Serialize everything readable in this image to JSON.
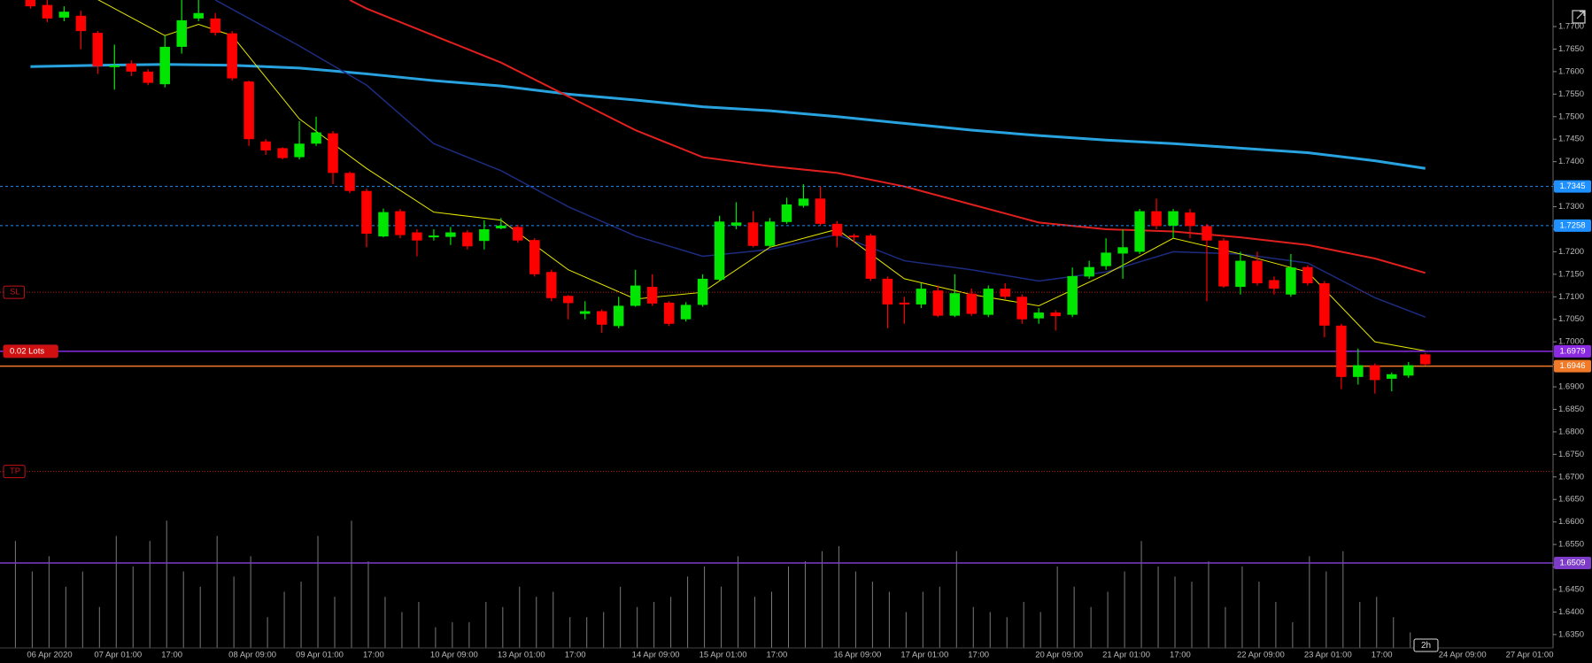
{
  "chart_data": {
    "type": "candlestick",
    "timeframe": "2h",
    "colors": {
      "up": "#00e600",
      "down": "#ff0000",
      "volume": "#7a7a7a"
    },
    "categories": [
      "06 Apr 2020",
      null,
      null,
      null,
      "07 Apr 01:00",
      null,
      null,
      null,
      "17:00",
      null,
      null,
      null,
      "08 Apr 09:00",
      null,
      null,
      null,
      "09 Apr 01:00",
      null,
      null,
      null,
      "17:00",
      null,
      null,
      null,
      "10 Apr 09:00",
      null,
      null,
      null,
      "13 Apr 01:00",
      null,
      null,
      null,
      "17:00",
      null,
      null,
      null,
      "14 Apr 09:00",
      null,
      null,
      null,
      "15 Apr 01:00",
      null,
      null,
      null,
      "17:00",
      null,
      null,
      null,
      "16 Apr 09:00",
      null,
      null,
      null,
      "17 Apr 01:00",
      null,
      null,
      null,
      "17:00",
      null,
      null,
      null,
      "20 Apr 09:00",
      null,
      null,
      null,
      "21 Apr 01:00",
      null,
      null,
      null,
      "17:00",
      null,
      null,
      null,
      "22 Apr 09:00",
      null,
      null,
      null,
      "23 Apr 01:00",
      null,
      null,
      null,
      "17:00",
      null,
      null,
      null,
      "24 Apr 09:00",
      null,
      null,
      null,
      "27 Apr 01:00",
      null,
      null
    ],
    "open": [
      1.7768,
      1.7748,
      1.772,
      1.7724,
      1.7686,
      1.761,
      1.7618,
      1.76,
      1.7572,
      1.7655,
      1.7718,
      1.7718,
      1.7685,
      1.7578,
      1.7445,
      1.743,
      1.741,
      1.744,
      1.7463,
      1.7375,
      1.7335,
      1.7234,
      1.729,
      1.7243,
      1.7232,
      1.7233,
      1.7243,
      1.7224,
      1.7252,
      1.7255,
      1.7226,
      1.7155,
      1.7102,
      1.7062,
      1.7068,
      1.7035,
      1.708,
      1.7122,
      1.7087,
      1.705,
      1.7082,
      1.7138,
      1.7258,
      1.7265,
      1.7213,
      1.7266,
      1.7302,
      1.7318,
      1.7262,
      1.7236,
      1.7236,
      1.714,
      1.7087,
      1.7083,
      1.7114,
      1.7058,
      1.7107,
      1.706,
      1.7118,
      1.71,
      1.7052,
      1.7065,
      1.706,
      1.7145,
      1.7168,
      1.7196,
      1.72,
      1.729,
      1.7258,
      1.7287,
      1.7257,
      1.7225,
      1.7122,
      1.718,
      1.7137,
      1.7105,
      1.7166,
      1.713,
      1.7036,
      1.6922,
      1.6948,
      1.6918,
      1.6925,
      1.6972,
      null,
      null,
      null,
      null,
      null,
      null,
      null
    ],
    "high": [
      1.778,
      1.776,
      1.7745,
      1.7735,
      1.769,
      1.766,
      1.7625,
      1.7605,
      1.768,
      1.776,
      1.776,
      1.773,
      1.769,
      1.758,
      1.745,
      1.7432,
      1.749,
      1.75,
      1.7468,
      1.7378,
      1.734,
      1.7296,
      1.7295,
      1.725,
      1.725,
      1.7255,
      1.7248,
      1.727,
      1.7275,
      1.726,
      1.723,
      1.716,
      1.7104,
      1.709,
      1.7072,
      1.71,
      1.716,
      1.715,
      1.709,
      1.7088,
      1.715,
      1.728,
      1.731,
      1.729,
      1.7275,
      1.732,
      1.735,
      1.7345,
      1.7268,
      1.724,
      1.724,
      1.7145,
      1.71,
      1.713,
      1.7125,
      1.715,
      1.7118,
      1.7125,
      1.713,
      1.7105,
      1.7075,
      1.707,
      1.7165,
      1.718,
      1.723,
      1.725,
      1.7295,
      1.7318,
      1.7295,
      1.7295,
      1.7262,
      1.723,
      1.72,
      1.72,
      1.7145,
      1.7195,
      1.717,
      1.7135,
      1.704,
      1.6985,
      1.6952,
      1.6932,
      1.6955,
      1.6975,
      null,
      null,
      null,
      null,
      null,
      null,
      null
    ],
    "low": [
      1.774,
      1.771,
      1.7712,
      1.765,
      1.7595,
      1.756,
      1.759,
      1.757,
      1.7565,
      1.764,
      1.7712,
      1.768,
      1.758,
      1.7435,
      1.7415,
      1.7405,
      1.7405,
      1.7435,
      1.735,
      1.733,
      1.721,
      1.7232,
      1.723,
      1.719,
      1.7225,
      1.7215,
      1.7205,
      1.7205,
      1.725,
      1.722,
      1.7145,
      1.709,
      1.705,
      1.705,
      1.702,
      1.703,
      1.7078,
      1.708,
      1.7035,
      1.7045,
      1.7078,
      1.7135,
      1.725,
      1.721,
      1.721,
      1.7262,
      1.7298,
      1.7258,
      1.721,
      1.722,
      1.7135,
      1.703,
      1.704,
      1.7075,
      1.7055,
      1.7055,
      1.7058,
      1.7055,
      1.7095,
      1.704,
      1.704,
      1.7025,
      1.7055,
      1.714,
      1.716,
      1.714,
      1.7195,
      1.725,
      1.723,
      1.723,
      1.709,
      1.712,
      1.7105,
      1.7125,
      1.7105,
      1.71,
      1.7125,
      1.701,
      1.6895,
      1.6905,
      1.6885,
      1.689,
      1.692,
      1.6948,
      null,
      null,
      null,
      null,
      null,
      null,
      null
    ],
    "close": [
      1.7745,
      1.7718,
      1.7733,
      1.769,
      1.7612,
      1.7614,
      1.76,
      1.7575,
      1.7655,
      1.7714,
      1.773,
      1.7686,
      1.7585,
      1.745,
      1.7425,
      1.7408,
      1.744,
      1.7465,
      1.7375,
      1.7335,
      1.724,
      1.7288,
      1.7237,
      1.7225,
      1.7236,
      1.7243,
      1.7212,
      1.725,
      1.7258,
      1.7225,
      1.715,
      1.7097,
      1.7086,
      1.7068,
      1.7038,
      1.708,
      1.7125,
      1.7085,
      1.704,
      1.7082,
      1.714,
      1.7267,
      1.7265,
      1.7213,
      1.7267,
      1.7305,
      1.7318,
      1.7262,
      1.7235,
      1.7232,
      1.714,
      1.7083,
      1.7083,
      1.7118,
      1.7058,
      1.7108,
      1.7062,
      1.7118,
      1.71,
      1.705,
      1.7065,
      1.7057,
      1.7146,
      1.7166,
      1.7198,
      1.721,
      1.729,
      1.7257,
      1.729,
      1.7257,
      1.7225,
      1.7123,
      1.718,
      1.713,
      1.7118,
      1.7165,
      1.713,
      1.7036,
      1.6922,
      1.6948,
      1.6915,
      1.6928,
      1.6948,
      1.695,
      null,
      null,
      null,
      null,
      null,
      null,
      null
    ],
    "volume": [
      105,
      75,
      90,
      60,
      75,
      40,
      110,
      80,
      105,
      125,
      75,
      60,
      110,
      70,
      90,
      30,
      55,
      65,
      110,
      50,
      125,
      85,
      50,
      35,
      45,
      20,
      25,
      25,
      45,
      40,
      60,
      50,
      55,
      30,
      30,
      35,
      60,
      40,
      45,
      50,
      70,
      80,
      60,
      90,
      50,
      55,
      80,
      85,
      95,
      100,
      75,
      65,
      55,
      35,
      55,
      60,
      95,
      40,
      35,
      30,
      45,
      35,
      80,
      60,
      40,
      55,
      75,
      105,
      80,
      70,
      65,
      85,
      40,
      80,
      65,
      45,
      25,
      90,
      75,
      95,
      45,
      50,
      30,
      15,
      null,
      null,
      null,
      null,
      null,
      null,
      null
    ],
    "overlays": [
      {
        "color": "#29a3e0",
        "width": 3,
        "x": [
          0,
          4,
          8,
          12,
          16,
          20,
          24,
          28,
          32,
          36,
          40,
          44,
          48,
          52,
          56,
          60,
          64,
          68,
          72,
          76,
          80,
          83
        ],
        "values": [
          1.7611,
          1.7614,
          1.7616,
          1.7614,
          1.7608,
          1.7595,
          1.758,
          1.7568,
          1.755,
          1.7537,
          1.7522,
          1.7513,
          1.75,
          1.7485,
          1.747,
          1.7458,
          1.7448,
          1.744,
          1.743,
          1.742,
          1.7402,
          1.7385
        ]
      },
      {
        "color": "#e0201e",
        "width": 2,
        "x": [
          19,
          20,
          24,
          28,
          32,
          36,
          40,
          44,
          48,
          52,
          56,
          60,
          64,
          68,
          72,
          76,
          80,
          83
        ],
        "values": [
          1.7759,
          1.774,
          1.768,
          1.762,
          1.7545,
          1.747,
          1.741,
          1.739,
          1.7375,
          1.7345,
          1.7305,
          1.7265,
          1.725,
          1.7245,
          1.7232,
          1.7215,
          1.7185,
          1.7153
        ]
      },
      {
        "color": "#1c2c80",
        "width": 1.5,
        "x": [
          11,
          16,
          20,
          24,
          28,
          32,
          36,
          40,
          44,
          48,
          52,
          56,
          60,
          64,
          68,
          72,
          76,
          80,
          83
        ],
        "values": [
          1.7759,
          1.7657,
          1.757,
          1.744,
          1.738,
          1.73,
          1.7235,
          1.719,
          1.7205,
          1.7238,
          1.718,
          1.716,
          1.7135,
          1.7155,
          1.72,
          1.7195,
          1.7175,
          1.7098,
          1.7055
        ]
      },
      {
        "color": "#e6e600",
        "width": 1,
        "x": [
          4,
          8,
          10,
          12,
          16,
          20,
          24,
          28,
          32,
          36,
          40,
          44,
          48,
          52,
          56,
          60,
          64,
          68,
          72,
          76,
          80,
          83
        ],
        "values": [
          1.776,
          1.768,
          1.7705,
          1.768,
          1.7495,
          1.7385,
          1.7288,
          1.727,
          1.716,
          1.7095,
          1.711,
          1.721,
          1.725,
          1.714,
          1.7105,
          1.708,
          1.715,
          1.723,
          1.7195,
          1.7155,
          1.7,
          1.698
        ]
      }
    ],
    "levels": [
      {
        "value": 1.7345,
        "label": "1.7345",
        "color": "#1e90ff",
        "style": "dashed"
      },
      {
        "value": 1.7258,
        "label": "1.7258",
        "color": "#1e90ff",
        "style": "dashed"
      },
      {
        "value": 1.711,
        "left_label": "SL",
        "color": "#c0141a",
        "style": "dotted"
      },
      {
        "value": 1.6979,
        "left_label": "0.02 Lots",
        "label": "1.6979",
        "color": "#8a2be2",
        "style": "solid"
      },
      {
        "value": 1.6946,
        "label": "1.6946",
        "color": "#f07a28",
        "style": "solid"
      },
      {
        "value": 1.6712,
        "left_label": "TP",
        "color": "#c0141a",
        "style": "dotted"
      },
      {
        "value": 1.6509,
        "label": "1.6509",
        "color": "#7d3cc8",
        "style": "solid"
      }
    ],
    "ylim": [
      1.6321,
      1.7759
    ],
    "yticks": [
      {
        "value": 1.635,
        "label": "1.6350"
      },
      {
        "value": 1.64,
        "label": "1.6400"
      },
      {
        "value": 1.645,
        "label": "1.6450"
      },
      {
        "value": 1.65,
        "label": "1.6500"
      },
      {
        "value": 1.655,
        "label": "1.6550"
      },
      {
        "value": 1.66,
        "label": "1.6600"
      },
      {
        "value": 1.665,
        "label": "1.6650"
      },
      {
        "value": 1.67,
        "label": "1.6700"
      },
      {
        "value": 1.675,
        "label": "1.6750"
      },
      {
        "value": 1.68,
        "label": "1.6800"
      },
      {
        "value": 1.685,
        "label": "1.6850"
      },
      {
        "value": 1.69,
        "label": "1.6900"
      },
      {
        "value": 1.695,
        "label": "1.6950"
      },
      {
        "value": 1.7,
        "label": "1.7000"
      },
      {
        "value": 1.705,
        "label": "1.7050"
      },
      {
        "value": 1.71,
        "label": "1.7100"
      },
      {
        "value": 1.715,
        "label": "1.7150"
      },
      {
        "value": 1.72,
        "label": "1.7200"
      },
      {
        "value": 1.725,
        "label": "1.7250"
      },
      {
        "value": 1.73,
        "label": "1.7300"
      },
      {
        "value": 1.735,
        "label": "1.7350"
      },
      {
        "value": 1.74,
        "label": "1.7400"
      },
      {
        "value": 1.745,
        "label": "1.7450"
      },
      {
        "value": 1.75,
        "label": "1.7500"
      },
      {
        "value": 1.755,
        "label": "1.7550"
      },
      {
        "value": 1.76,
        "label": "1.7600"
      },
      {
        "value": 1.765,
        "label": "1.7650"
      },
      {
        "value": 1.77,
        "label": "1.7700"
      }
    ]
  }
}
